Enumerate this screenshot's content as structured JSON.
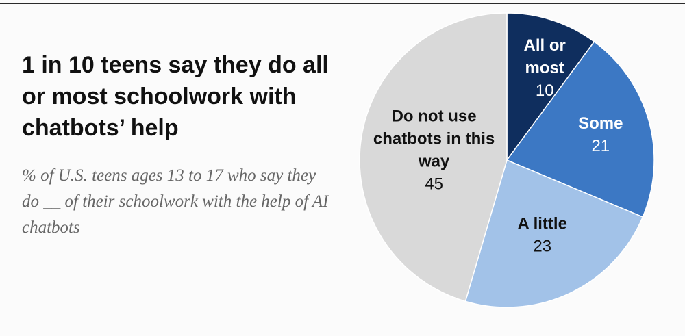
{
  "chart_data": {
    "type": "pie",
    "title": "1 in 10 teens say they do all or most schoolwork with chatbots’ help",
    "subtitle": "% of U.S. teens ages 13 to 17 who say they do __ of their schoolwork with the help of AI chatbots",
    "slices": [
      {
        "label_lines": [
          "All or",
          "most"
        ],
        "value": 10,
        "color": "#0f2e5e",
        "text_color": "#ffffff"
      },
      {
        "label_lines": [
          "Some"
        ],
        "value": 21,
        "color": "#3c78c4",
        "text_color": "#ffffff"
      },
      {
        "label_lines": [
          "A little"
        ],
        "value": 23,
        "color": "#a2c2e8",
        "text_color": "#111111"
      },
      {
        "label_lines": [
          "Do not use",
          "chatbots in this",
          "way"
        ],
        "value": 45,
        "color": "#d9d9d9",
        "text_color": "#111111"
      }
    ]
  }
}
